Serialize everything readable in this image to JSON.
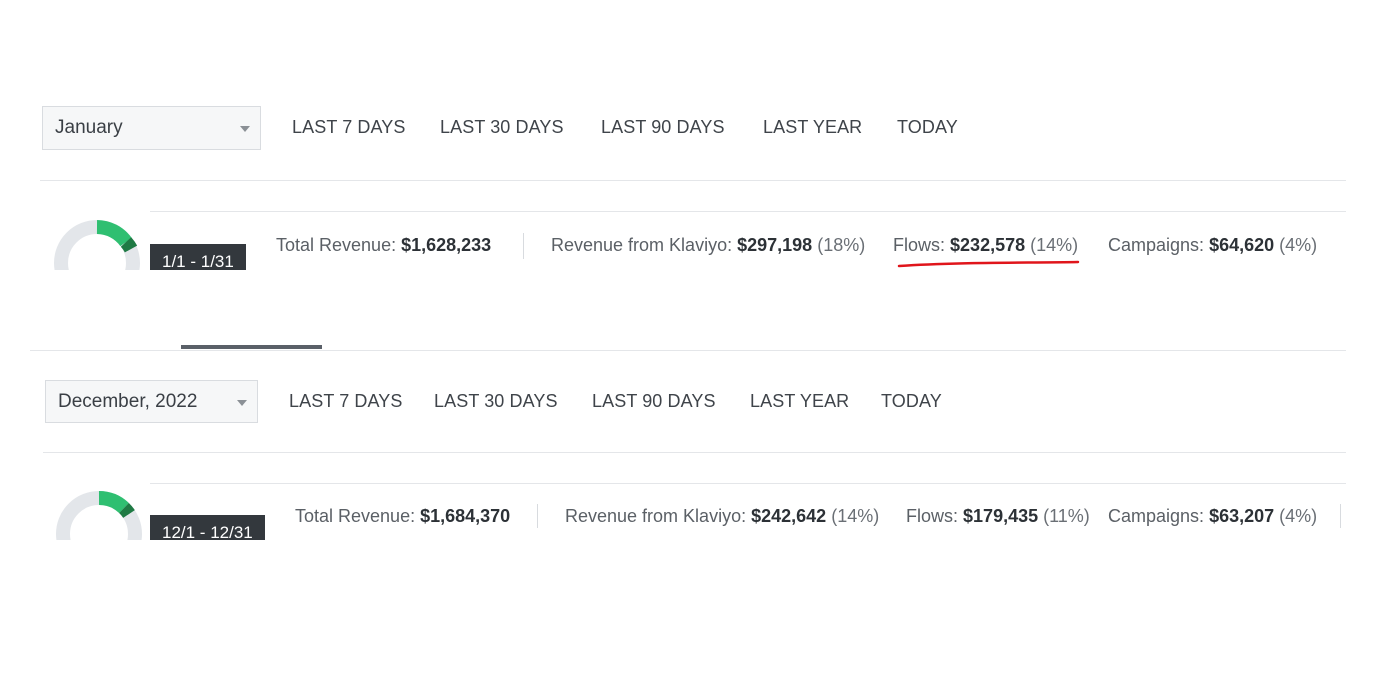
{
  "panels": [
    {
      "month_select": "January",
      "ranges": [
        "LAST 7 DAYS",
        "LAST 30 DAYS",
        "LAST 90 DAYS",
        "LAST YEAR",
        "TODAY"
      ],
      "date_badge": "1/1 - 1/31",
      "stats": {
        "total_label": "Total Revenue:",
        "total_value": "$1,628,233",
        "klaviyo_label": "Revenue from Klaviyo:",
        "klaviyo_value": "$297,198",
        "klaviyo_pct": "(18%)",
        "flows_label": "Flows:",
        "flows_value": "$232,578",
        "flows_pct": "(14%)",
        "campaigns_label": "Campaigns:",
        "campaigns_value": "$64,620",
        "campaigns_pct": "(4%)"
      }
    },
    {
      "month_select": "December, 2022",
      "ranges": [
        "LAST 7 DAYS",
        "LAST 30 DAYS",
        "LAST 90 DAYS",
        "LAST YEAR",
        "TODAY"
      ],
      "date_badge": "12/1 - 12/31",
      "stats": {
        "total_label": "Total Revenue:",
        "total_value": "$1,684,370",
        "klaviyo_label": "Revenue from Klaviyo:",
        "klaviyo_value": "$242,642",
        "klaviyo_pct": "(14%)",
        "flows_label": "Flows:",
        "flows_value": "$179,435",
        "flows_pct": "(11%)",
        "campaigns_label": "Campaigns:",
        "campaigns_value": "$63,207",
        "campaigns_pct": "(4%)"
      }
    }
  ],
  "colors": {
    "donut_track": "#e3e6ea",
    "donut_green": "#2fbf71",
    "donut_dark_green": "#1f7a44",
    "annotation_red": "#e0151b",
    "tab_indicator": "#5a6068"
  }
}
